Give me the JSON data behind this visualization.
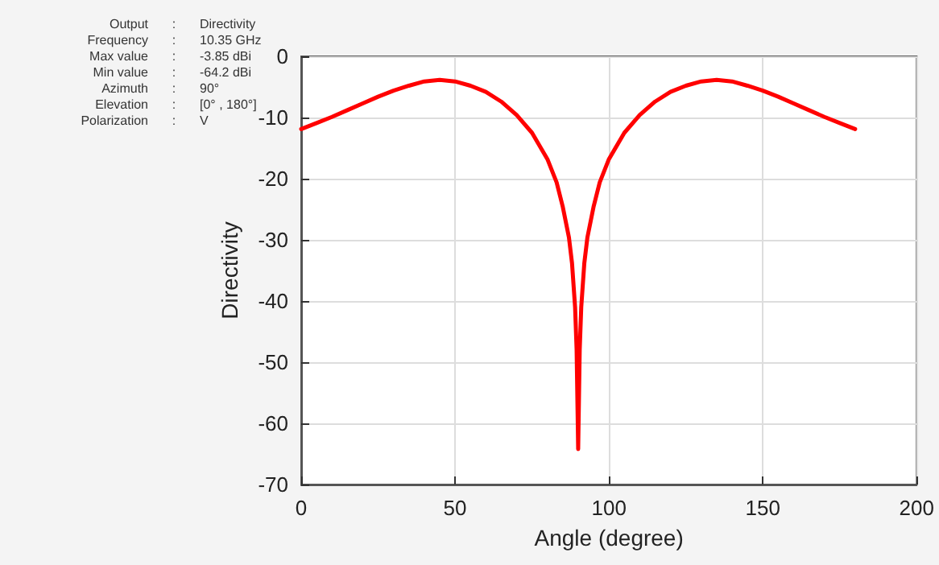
{
  "chart_data": {
    "type": "line",
    "xlabel": "Angle (degree)",
    "ylabel": "Directivity",
    "annotations": [
      "Output : Directivity",
      "Frequency : 10.35 GHz",
      "Max value : -3.85 dBi",
      "Min value : -64.2 dBi",
      "Azimuth : 90°",
      "Elevation : [0° , 180°]",
      "Polarization : V"
    ],
    "x": [
      0,
      5,
      10,
      15,
      20,
      25,
      30,
      35,
      40,
      45,
      50,
      55,
      60,
      65,
      70,
      75,
      80,
      83,
      85,
      87,
      88,
      89,
      89.5,
      90,
      90.5,
      91,
      92,
      93,
      95,
      97,
      100,
      105,
      110,
      115,
      120,
      125,
      130,
      135,
      140,
      145,
      150,
      155,
      160,
      165,
      170,
      175,
      180
    ],
    "series": [
      {
        "color": "#ff0000",
        "values": [
          -11.9,
          -10.9,
          -9.9,
          -8.8,
          -7.7,
          -6.6,
          -5.6,
          -4.8,
          -4.1,
          -3.85,
          -4.1,
          -4.8,
          -5.8,
          -7.4,
          -9.6,
          -12.5,
          -16.8,
          -20.6,
          -24.6,
          -29.6,
          -33.8,
          -41,
          -48,
          -64.2,
          -48,
          -41,
          -33.8,
          -29.6,
          -24.6,
          -20.6,
          -16.8,
          -12.5,
          -9.6,
          -7.4,
          -5.8,
          -4.8,
          -4.1,
          -3.85,
          -4.1,
          -4.8,
          -5.6,
          -6.6,
          -7.7,
          -8.8,
          -9.9,
          -10.9,
          -11.9
        ]
      }
    ],
    "xlim": [
      0,
      200
    ],
    "xticks": [
      0,
      50,
      100,
      150,
      200
    ],
    "ylim": [
      -70,
      0
    ],
    "yticks": [
      -70,
      -60,
      -50,
      -40,
      -30,
      -20,
      -10,
      0
    ],
    "grid": true,
    "marker": "none",
    "line_style": "solid"
  }
}
